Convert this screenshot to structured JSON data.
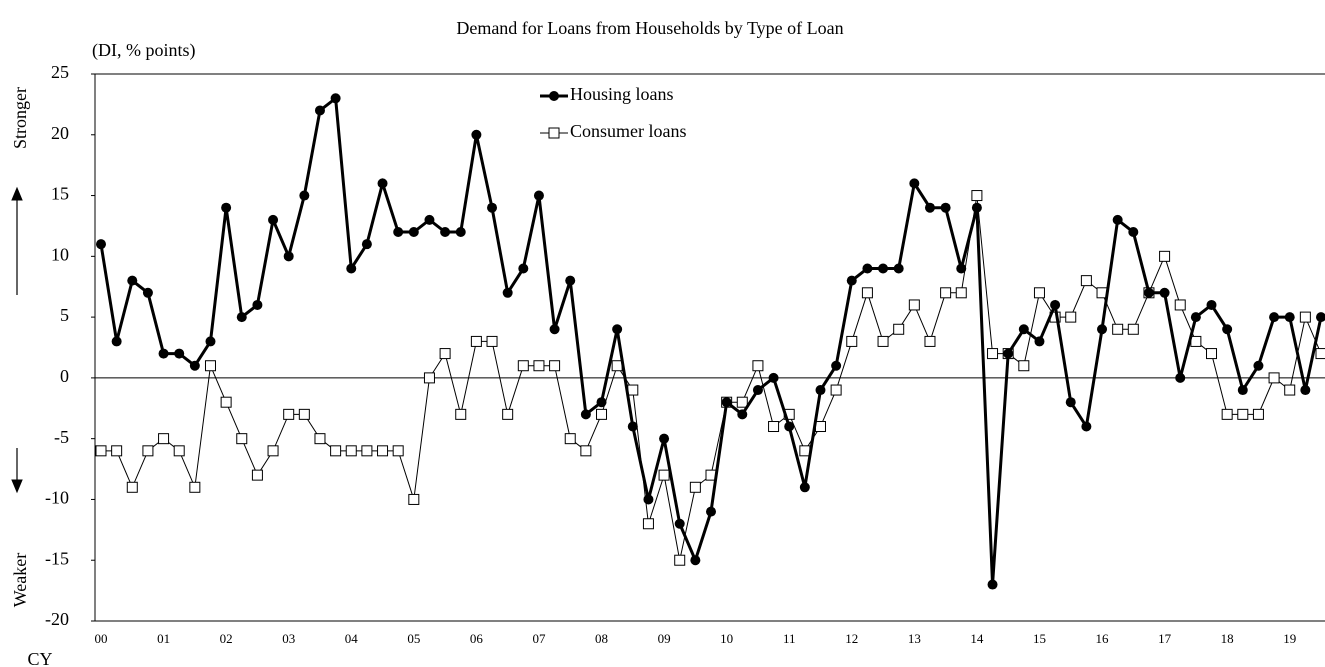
{
  "chart_data": {
    "type": "line",
    "title": "Demand for Loans from Households by Type of Loan",
    "y_unit": "(DI, % points)",
    "y_upper_label": "Stronger",
    "y_lower_label": "Weaker",
    "x_label": "CY",
    "categories": [
      "00",
      null,
      null,
      null,
      "01",
      null,
      null,
      null,
      "02",
      null,
      null,
      null,
      "03",
      null,
      null,
      null,
      "04",
      null,
      null,
      null,
      "05",
      null,
      null,
      null,
      "06",
      null,
      null,
      null,
      "07",
      null,
      null,
      null,
      "08",
      null,
      null,
      null,
      "09",
      null,
      null,
      null,
      "10",
      null,
      null,
      null,
      "11",
      null,
      null,
      null,
      "12",
      null,
      null,
      null,
      "13",
      null,
      null,
      null,
      "14",
      null,
      null,
      null,
      "15",
      null,
      null,
      null,
      "16",
      null,
      null,
      null,
      "17",
      null,
      null,
      null,
      "18",
      null,
      null,
      null,
      "19",
      null,
      null
    ],
    "series": [
      {
        "name": "Housing loans",
        "color": "#000000",
        "marker": "circle",
        "line_width": 3,
        "values": [
          11,
          3,
          8,
          7,
          2,
          2,
          1,
          3,
          14,
          5,
          6,
          13,
          10,
          15,
          22,
          23,
          9,
          11,
          16,
          12,
          12,
          13,
          12,
          12,
          20,
          14,
          7,
          9,
          15,
          4,
          8,
          -3,
          -2,
          4,
          -4,
          -10,
          -5,
          -12,
          -15,
          -11,
          -2,
          -3,
          -1,
          0,
          -4,
          -9,
          -1,
          1,
          8,
          9,
          9,
          9,
          16,
          14,
          14,
          9,
          14,
          -17,
          2,
          4,
          3,
          6,
          -2,
          -4,
          4,
          13,
          12,
          7,
          7,
          0,
          5,
          6,
          4,
          -1,
          1,
          5,
          5,
          -1,
          5
        ]
      },
      {
        "name": "Consumer loans",
        "color": "#000000",
        "marker": "square",
        "line_width": 1,
        "values": [
          -6,
          -6,
          -9,
          -6,
          -5,
          -6,
          -9,
          1,
          -2,
          -5,
          -8,
          -6,
          -3,
          -3,
          -5,
          -6,
          -6,
          -6,
          -6,
          -6,
          -10,
          0,
          2,
          -3,
          3,
          3,
          -3,
          1,
          1,
          1,
          -5,
          -6,
          -3,
          1,
          -1,
          -12,
          -8,
          -15,
          -9,
          -8,
          -2,
          -2,
          1,
          -4,
          -3,
          -6,
          -4,
          -1,
          3,
          7,
          3,
          4,
          6,
          3,
          7,
          7,
          15,
          2,
          2,
          1,
          7,
          5,
          5,
          8,
          7,
          4,
          4,
          7,
          10,
          6,
          3,
          2,
          -3,
          -3,
          -3,
          0,
          -1,
          5,
          2
        ]
      }
    ],
    "ylim": [
      -20,
      25
    ],
    "yticks": [
      -20,
      -15,
      -10,
      -5,
      0,
      5,
      10,
      15,
      20,
      25
    ],
    "zero_line": true,
    "legend": "upper center"
  }
}
